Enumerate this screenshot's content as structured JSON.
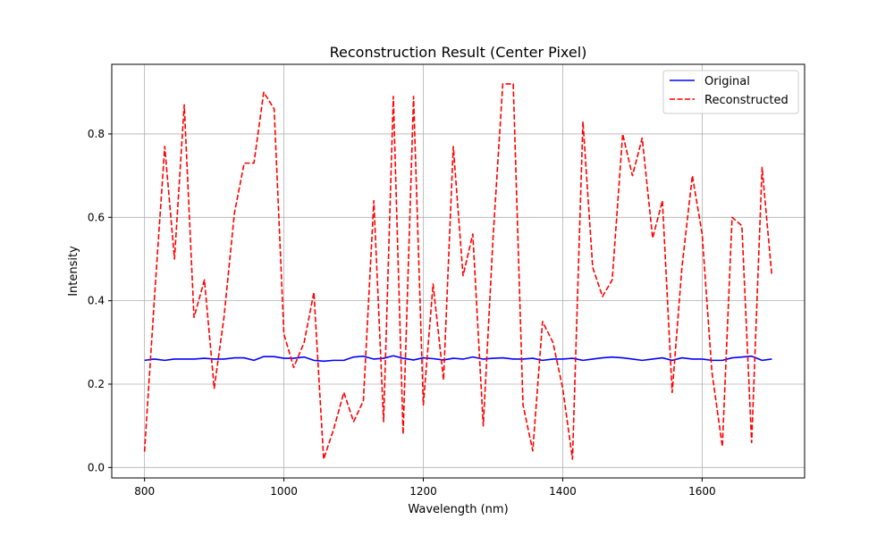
{
  "chart_data": {
    "type": "line",
    "title": "Reconstruction Result (Center Pixel)",
    "xlabel": "Wavelength (nm)",
    "ylabel": "Intensity",
    "xlim": [
      753,
      1747
    ],
    "ylim": [
      -0.025,
      0.967
    ],
    "xticks": [
      800,
      1000,
      1200,
      1400,
      1600
    ],
    "yticks": [
      0.0,
      0.2,
      0.4,
      0.6,
      0.8
    ],
    "xtick_labels": [
      "800",
      "1000",
      "1200",
      "1400",
      "1600"
    ],
    "ytick_labels": [
      "0.0",
      "0.2",
      "0.4",
      "0.6",
      "0.8"
    ],
    "grid": true,
    "legend_position": "top-right",
    "x": [
      800,
      814,
      829,
      843,
      857,
      871,
      886,
      900,
      914,
      929,
      943,
      957,
      971,
      986,
      1000,
      1014,
      1029,
      1043,
      1057,
      1071,
      1086,
      1100,
      1114,
      1129,
      1143,
      1157,
      1171,
      1186,
      1200,
      1214,
      1229,
      1243,
      1257,
      1271,
      1286,
      1300,
      1314,
      1329,
      1343,
      1357,
      1371,
      1386,
      1400,
      1414,
      1429,
      1443,
      1457,
      1471,
      1486,
      1500,
      1514,
      1529,
      1543,
      1557,
      1571,
      1586,
      1600,
      1614,
      1629,
      1643,
      1657,
      1671,
      1686,
      1700
    ],
    "series": [
      {
        "name": "Original",
        "color": "#0000ff",
        "style": "solid",
        "values": [
          0.257,
          0.26,
          0.257,
          0.26,
          0.26,
          0.26,
          0.262,
          0.26,
          0.26,
          0.263,
          0.263,
          0.257,
          0.266,
          0.266,
          0.262,
          0.262,
          0.265,
          0.257,
          0.255,
          0.257,
          0.257,
          0.265,
          0.267,
          0.26,
          0.262,
          0.268,
          0.262,
          0.258,
          0.263,
          0.261,
          0.258,
          0.262,
          0.26,
          0.265,
          0.26,
          0.262,
          0.263,
          0.26,
          0.26,
          0.262,
          0.257,
          0.26,
          0.26,
          0.262,
          0.257,
          0.26,
          0.263,
          0.265,
          0.263,
          0.26,
          0.257,
          0.26,
          0.263,
          0.257,
          0.263,
          0.26,
          0.26,
          0.257,
          0.257,
          0.263,
          0.265,
          0.267,
          0.257,
          0.26
        ]
      },
      {
        "name": "Reconstructed",
        "color": "#ff0000",
        "style": "dashed",
        "values": [
          0.038,
          0.4,
          0.77,
          0.5,
          0.87,
          0.36,
          0.45,
          0.19,
          0.36,
          0.61,
          0.73,
          0.73,
          0.9,
          0.86,
          0.32,
          0.24,
          0.3,
          0.42,
          0.02,
          0.09,
          0.18,
          0.11,
          0.16,
          0.64,
          0.11,
          0.89,
          0.08,
          0.89,
          0.15,
          0.44,
          0.21,
          0.77,
          0.46,
          0.56,
          0.1,
          0.55,
          0.92,
          0.92,
          0.15,
          0.04,
          0.35,
          0.3,
          0.19,
          0.02,
          0.83,
          0.48,
          0.41,
          0.45,
          0.8,
          0.7,
          0.79,
          0.55,
          0.64,
          0.18,
          0.48,
          0.7,
          0.56,
          0.23,
          0.05,
          0.6,
          0.58,
          0.06,
          0.72,
          0.46
        ]
      }
    ]
  }
}
